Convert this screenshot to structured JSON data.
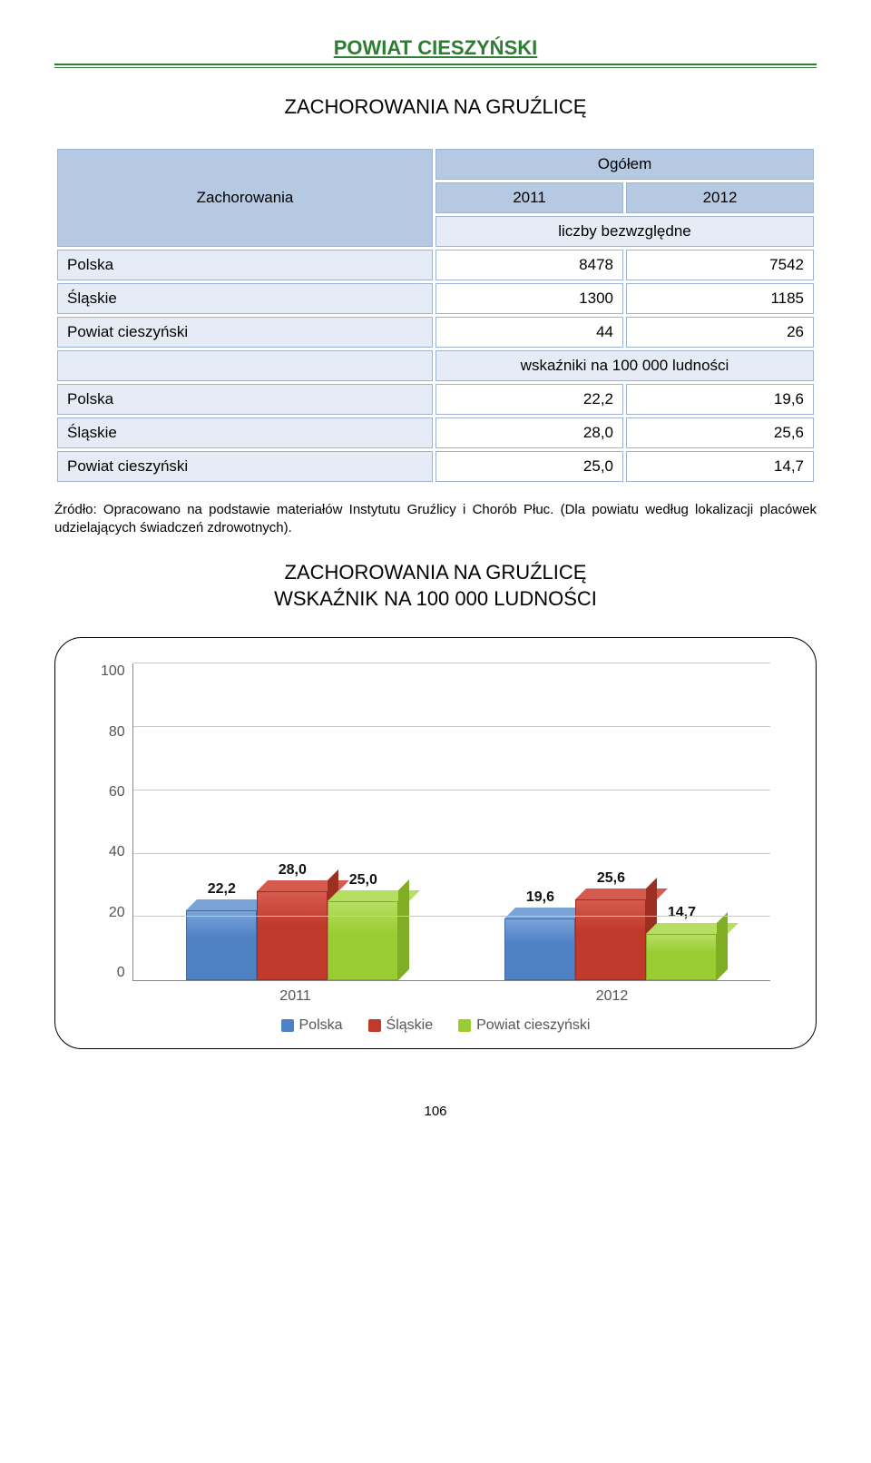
{
  "header": {
    "title": "POWIAT CIESZYŃSKI"
  },
  "subtitle": "ZACHOROWANIA NA GRUŹLICĘ",
  "table": {
    "row_header": "Zachorowania",
    "col_group": "Ogółem",
    "years": [
      "2011",
      "2012"
    ],
    "sub1": "liczby bezwzględne",
    "rows1": [
      {
        "label": "Polska",
        "a": "8478",
        "b": "7542"
      },
      {
        "label": "Śląskie",
        "a": "1300",
        "b": "1185"
      },
      {
        "label": "Powiat cieszyński",
        "a": "44",
        "b": "26"
      }
    ],
    "sub2": "wskaźniki na 100 000 ludności",
    "rows2": [
      {
        "label": "Polska",
        "a": "22,2",
        "b": "19,6"
      },
      {
        "label": "Śląskie",
        "a": "28,0",
        "b": "25,6"
      },
      {
        "label": "Powiat cieszyński",
        "a": "25,0",
        "b": "14,7"
      }
    ]
  },
  "source": "Źródło: Opracowano na podstawie materiałów Instytutu Gruźlicy i Chorób Płuc. (Dla powiatu według lokalizacji placówek udzielających świadczeń zdrowotnych).",
  "chart": {
    "title_line1": "ZACHOROWANIA NA GRUŹLICĘ",
    "title_line2": "WSKAŹNIK NA 100 000 LUDNOŚCI",
    "ymax": 100,
    "yticks": [
      100,
      80,
      60,
      40,
      20,
      0
    ],
    "categories": [
      "2011",
      "2012"
    ],
    "series": [
      {
        "name": "Polska",
        "color_front": "#4f81c5",
        "color_top": "#7aa3d8",
        "color_side": "#3f6aa8",
        "values": [
          22.2,
          19.6
        ],
        "labels": [
          "22,2",
          "19,6"
        ]
      },
      {
        "name": "Śląskie",
        "color_front": "#c0392b",
        "color_top": "#d55b4e",
        "color_side": "#9c2e22",
        "values": [
          28.0,
          25.6
        ],
        "labels": [
          "28,0",
          "25,6"
        ]
      },
      {
        "name": "Powiat cieszyński",
        "color_front": "#9acd32",
        "color_top": "#b6de63",
        "color_side": "#7fae25",
        "values": [
          25.0,
          14.7
        ],
        "labels": [
          "25,0",
          "14,7"
        ]
      }
    ]
  },
  "page": "106"
}
